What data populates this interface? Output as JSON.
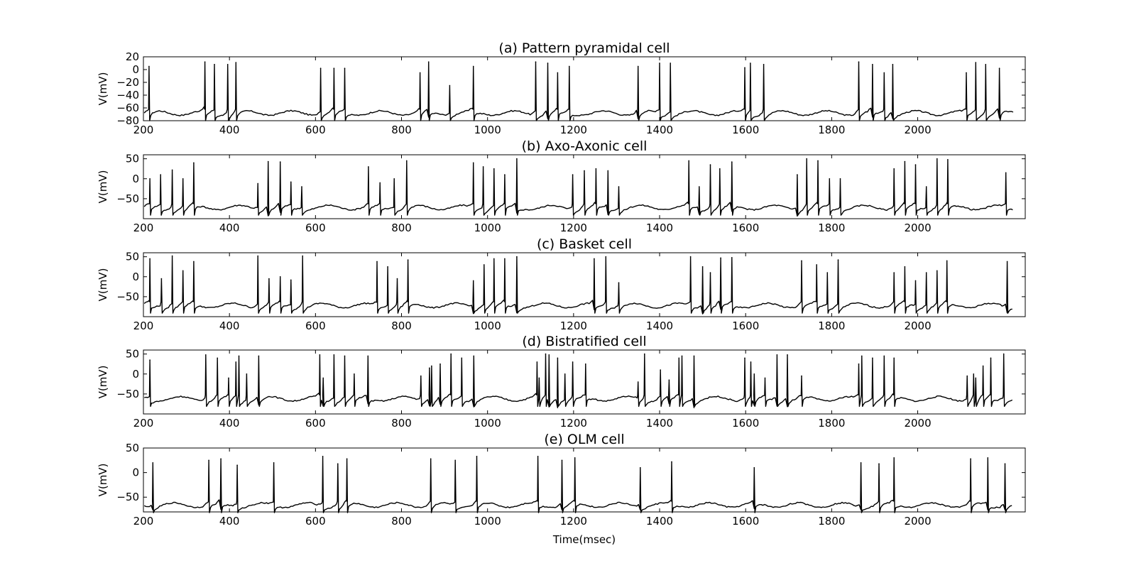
{
  "chart_data": [
    {
      "type": "line",
      "title": "(a) Pattern pyramidal cell",
      "ylabel": "V(mV)",
      "xlabel": "",
      "xlim": [
        200,
        2250
      ],
      "ylim": [
        -80,
        20
      ],
      "xticks": [
        "200",
        "400",
        "600",
        "800",
        "1000",
        "1200",
        "1400",
        "1600",
        "1800",
        "2000"
      ],
      "yticks": [
        "20",
        "0",
        "−20",
        "−40",
        "−60",
        "−80"
      ],
      "ytick_values": [
        20,
        0,
        -20,
        -40,
        -60,
        -80
      ],
      "baseline": -68,
      "spikes": [
        {
          "t": 213,
          "v": 5
        },
        {
          "t": 343,
          "v": 12
        },
        {
          "t": 365,
          "v": 8
        },
        {
          "t": 396,
          "v": 8
        },
        {
          "t": 415,
          "v": 11
        },
        {
          "t": 612,
          "v": 2
        },
        {
          "t": 643,
          "v": 2
        },
        {
          "t": 668,
          "v": 2
        },
        {
          "t": 843,
          "v": -5
        },
        {
          "t": 863,
          "v": 12
        },
        {
          "t": 912,
          "v": -25
        },
        {
          "t": 967,
          "v": 5
        },
        {
          "t": 1112,
          "v": 12
        },
        {
          "t": 1140,
          "v": 10
        },
        {
          "t": 1163,
          "v": -5
        },
        {
          "t": 1190,
          "v": 5
        },
        {
          "t": 1350,
          "v": 5
        },
        {
          "t": 1400,
          "v": 10
        },
        {
          "t": 1425,
          "v": 10
        },
        {
          "t": 1598,
          "v": 3
        },
        {
          "t": 1611,
          "v": 10
        },
        {
          "t": 1642,
          "v": 8
        },
        {
          "t": 1863,
          "v": 12
        },
        {
          "t": 1895,
          "v": 8
        },
        {
          "t": 1922,
          "v": -5
        },
        {
          "t": 1942,
          "v": 8
        },
        {
          "t": 2113,
          "v": -5
        },
        {
          "t": 2135,
          "v": 11
        },
        {
          "t": 2158,
          "v": 8
        },
        {
          "t": 2190,
          "v": 2
        }
      ]
    },
    {
      "type": "line",
      "title": "(b) Axo-Axonic cell",
      "ylabel": "V(mV)",
      "xlabel": "",
      "xlim": [
        200,
        2250
      ],
      "ylim": [
        -100,
        60
      ],
      "xticks": [
        "200",
        "400",
        "600",
        "800",
        "1000",
        "1200",
        "1400",
        "1600",
        "1800",
        "2000"
      ],
      "yticks": [
        "50",
        "0",
        "−50"
      ],
      "ytick_values": [
        50,
        0,
        -50
      ],
      "baseline": -72,
      "spikes": [
        {
          "t": 215,
          "v": 0
        },
        {
          "t": 240,
          "v": 10
        },
        {
          "t": 267,
          "v": 22
        },
        {
          "t": 292,
          "v": 0
        },
        {
          "t": 317,
          "v": 40
        },
        {
          "t": 466,
          "v": -12
        },
        {
          "t": 490,
          "v": 43
        },
        {
          "t": 518,
          "v": 42
        },
        {
          "t": 543,
          "v": -8
        },
        {
          "t": 568,
          "v": -20
        },
        {
          "t": 723,
          "v": 30
        },
        {
          "t": 750,
          "v": -10
        },
        {
          "t": 783,
          "v": 0
        },
        {
          "t": 812,
          "v": 45
        },
        {
          "t": 967,
          "v": 40
        },
        {
          "t": 990,
          "v": 30
        },
        {
          "t": 1015,
          "v": 25
        },
        {
          "t": 1040,
          "v": 10
        },
        {
          "t": 1068,
          "v": 50
        },
        {
          "t": 1198,
          "v": 10
        },
        {
          "t": 1225,
          "v": 20
        },
        {
          "t": 1252,
          "v": 25
        },
        {
          "t": 1280,
          "v": 20
        },
        {
          "t": 1305,
          "v": -20
        },
        {
          "t": 1468,
          "v": 45
        },
        {
          "t": 1492,
          "v": -20
        },
        {
          "t": 1518,
          "v": 35
        },
        {
          "t": 1540,
          "v": 25
        },
        {
          "t": 1568,
          "v": 42
        },
        {
          "t": 1720,
          "v": 10
        },
        {
          "t": 1742,
          "v": 50
        },
        {
          "t": 1768,
          "v": 45
        },
        {
          "t": 1795,
          "v": 0
        },
        {
          "t": 1820,
          "v": 0
        },
        {
          "t": 1945,
          "v": 25
        },
        {
          "t": 1970,
          "v": 43
        },
        {
          "t": 1995,
          "v": 35
        },
        {
          "t": 2020,
          "v": -20
        },
        {
          "t": 2045,
          "v": 50
        },
        {
          "t": 2070,
          "v": 48
        },
        {
          "t": 2205,
          "v": 15
        }
      ]
    },
    {
      "type": "line",
      "title": "(c) Basket cell",
      "ylabel": "V(mV)",
      "xlabel": "",
      "xlim": [
        200,
        2250
      ],
      "ylim": [
        -100,
        60
      ],
      "xticks": [
        "200",
        "400",
        "600",
        "800",
        "1000",
        "1200",
        "1400",
        "1600",
        "1800",
        "2000"
      ],
      "yticks": [
        "50",
        "0",
        "−50"
      ],
      "ytick_values": [
        50,
        0,
        -50
      ],
      "baseline": -72,
      "spikes": [
        {
          "t": 215,
          "v": 45
        },
        {
          "t": 242,
          "v": -5
        },
        {
          "t": 267,
          "v": 52
        },
        {
          "t": 292,
          "v": 15
        },
        {
          "t": 317,
          "v": 38
        },
        {
          "t": 466,
          "v": 52
        },
        {
          "t": 492,
          "v": -5
        },
        {
          "t": 518,
          "v": 0
        },
        {
          "t": 543,
          "v": -8
        },
        {
          "t": 570,
          "v": 52
        },
        {
          "t": 743,
          "v": 38
        },
        {
          "t": 768,
          "v": 25
        },
        {
          "t": 790,
          "v": -5
        },
        {
          "t": 815,
          "v": 42
        },
        {
          "t": 967,
          "v": -10
        },
        {
          "t": 992,
          "v": 30
        },
        {
          "t": 1015,
          "v": 45
        },
        {
          "t": 1040,
          "v": 45
        },
        {
          "t": 1068,
          "v": 50
        },
        {
          "t": 1248,
          "v": 45
        },
        {
          "t": 1275,
          "v": 50
        },
        {
          "t": 1305,
          "v": -15
        },
        {
          "t": 1472,
          "v": 50
        },
        {
          "t": 1500,
          "v": 25
        },
        {
          "t": 1518,
          "v": 10
        },
        {
          "t": 1542,
          "v": 47
        },
        {
          "t": 1568,
          "v": 48
        },
        {
          "t": 1730,
          "v": 40
        },
        {
          "t": 1765,
          "v": 30
        },
        {
          "t": 1790,
          "v": 10
        },
        {
          "t": 1815,
          "v": 42
        },
        {
          "t": 1945,
          "v": 10
        },
        {
          "t": 1970,
          "v": 25
        },
        {
          "t": 1995,
          "v": -10
        },
        {
          "t": 2020,
          "v": 10
        },
        {
          "t": 2045,
          "v": 15
        },
        {
          "t": 2068,
          "v": 40
        },
        {
          "t": 2208,
          "v": 38
        }
      ]
    },
    {
      "type": "line",
      "title": "(d) Bistratified cell",
      "ylabel": "V(mV)",
      "xlabel": "",
      "xlim": [
        200,
        2250
      ],
      "ylim": [
        -100,
        60
      ],
      "xticks": [
        "200",
        "400",
        "600",
        "800",
        "1000",
        "1200",
        "1400",
        "1600",
        "1800",
        "2000"
      ],
      "yticks": [
        "50",
        "0",
        "−50"
      ],
      "ytick_values": [
        50,
        0,
        -50
      ],
      "baseline": -62,
      "spikes": [
        {
          "t": 215,
          "v": 35
        },
        {
          "t": 345,
          "v": 48
        },
        {
          "t": 372,
          "v": 40
        },
        {
          "t": 398,
          "v": -10
        },
        {
          "t": 415,
          "v": 30
        },
        {
          "t": 422,
          "v": 45
        },
        {
          "t": 440,
          "v": 0
        },
        {
          "t": 468,
          "v": 45
        },
        {
          "t": 610,
          "v": 48
        },
        {
          "t": 618,
          "v": -10
        },
        {
          "t": 643,
          "v": 48
        },
        {
          "t": 668,
          "v": 45
        },
        {
          "t": 690,
          "v": 0
        },
        {
          "t": 722,
          "v": 45
        },
        {
          "t": 845,
          "v": -5
        },
        {
          "t": 865,
          "v": 15
        },
        {
          "t": 870,
          "v": 20
        },
        {
          "t": 890,
          "v": 25
        },
        {
          "t": 915,
          "v": 50
        },
        {
          "t": 940,
          "v": 40
        },
        {
          "t": 968,
          "v": 45
        },
        {
          "t": 1115,
          "v": 30
        },
        {
          "t": 1120,
          "v": -10
        },
        {
          "t": 1135,
          "v": 50
        },
        {
          "t": 1143,
          "v": 48
        },
        {
          "t": 1163,
          "v": 40
        },
        {
          "t": 1180,
          "v": 0
        },
        {
          "t": 1198,
          "v": 30
        },
        {
          "t": 1228,
          "v": 25
        },
        {
          "t": 1350,
          "v": -20
        },
        {
          "t": 1365,
          "v": 50
        },
        {
          "t": 1402,
          "v": 10
        },
        {
          "t": 1422,
          "v": -15
        },
        {
          "t": 1445,
          "v": 40
        },
        {
          "t": 1452,
          "v": 45
        },
        {
          "t": 1480,
          "v": 45
        },
        {
          "t": 1598,
          "v": 40
        },
        {
          "t": 1612,
          "v": 30
        },
        {
          "t": 1620,
          "v": 0
        },
        {
          "t": 1645,
          "v": -10
        },
        {
          "t": 1673,
          "v": 48
        },
        {
          "t": 1697,
          "v": 48
        },
        {
          "t": 1730,
          "v": -5
        },
        {
          "t": 1863,
          "v": 25
        },
        {
          "t": 1870,
          "v": 45
        },
        {
          "t": 1895,
          "v": 40
        },
        {
          "t": 1922,
          "v": 45
        },
        {
          "t": 1945,
          "v": 40
        },
        {
          "t": 2115,
          "v": -5
        },
        {
          "t": 2130,
          "v": 0
        },
        {
          "t": 2135,
          "v": -10
        },
        {
          "t": 2152,
          "v": 20
        },
        {
          "t": 2170,
          "v": 40
        },
        {
          "t": 2200,
          "v": 50
        }
      ]
    },
    {
      "type": "line",
      "title": "(e) OLM cell",
      "ylabel": "V(mV)",
      "xlabel": "Time(msec)",
      "xlim": [
        200,
        2250
      ],
      "ylim": [
        -80,
        50
      ],
      "xticks": [
        "200",
        "400",
        "600",
        "800",
        "1000",
        "1200",
        "1400",
        "1600",
        "1800",
        "2000"
      ],
      "yticks": [
        "50",
        "0",
        "−50"
      ],
      "ytick_values": [
        50,
        0,
        -50
      ],
      "baseline": -66,
      "spikes": [
        {
          "t": 222,
          "v": 20
        },
        {
          "t": 352,
          "v": 25
        },
        {
          "t": 380,
          "v": 28
        },
        {
          "t": 418,
          "v": 15
        },
        {
          "t": 503,
          "v": 20
        },
        {
          "t": 617,
          "v": 33
        },
        {
          "t": 652,
          "v": 18
        },
        {
          "t": 673,
          "v": 28
        },
        {
          "t": 868,
          "v": 28
        },
        {
          "t": 925,
          "v": 25
        },
        {
          "t": 975,
          "v": 33
        },
        {
          "t": 1117,
          "v": 33
        },
        {
          "t": 1173,
          "v": 25
        },
        {
          "t": 1203,
          "v": 30
        },
        {
          "t": 1355,
          "v": 10
        },
        {
          "t": 1428,
          "v": 22
        },
        {
          "t": 1620,
          "v": 10
        },
        {
          "t": 1868,
          "v": 20
        },
        {
          "t": 1910,
          "v": 18
        },
        {
          "t": 1945,
          "v": 30
        },
        {
          "t": 2123,
          "v": 28
        },
        {
          "t": 2163,
          "v": 30
        },
        {
          "t": 2203,
          "v": 18
        }
      ]
    }
  ]
}
